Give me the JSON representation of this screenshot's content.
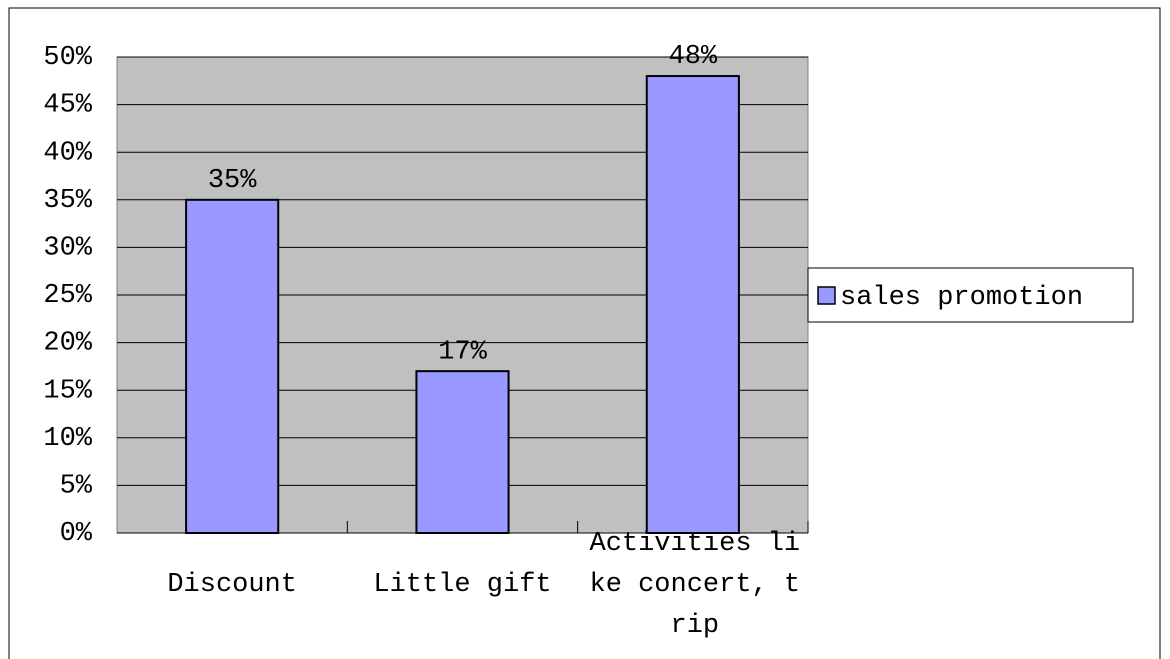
{
  "chart_data": {
    "type": "bar",
    "categories": [
      "Discount",
      "Little gift",
      "Activities like concert, trip"
    ],
    "series": [
      {
        "name": "sales promotion",
        "color": "#9999ff",
        "values": [
          35,
          17,
          48
        ],
        "value_labels": [
          "35%",
          "17%",
          "48%"
        ]
      }
    ],
    "ylim": [
      0,
      50
    ],
    "yticks": [
      {
        "value": 0,
        "label": "0%"
      },
      {
        "value": 5,
        "label": "5%"
      },
      {
        "value": 10,
        "label": "10%"
      },
      {
        "value": 15,
        "label": "15%"
      },
      {
        "value": 20,
        "label": "20%"
      },
      {
        "value": 25,
        "label": "25%"
      },
      {
        "value": 30,
        "label": "30%"
      },
      {
        "value": 35,
        "label": "35%"
      },
      {
        "value": 40,
        "label": "40%"
      },
      {
        "value": 45,
        "label": "45%"
      },
      {
        "value": 50,
        "label": "50%"
      }
    ],
    "grid": true,
    "plot_background": "#c0c0c0",
    "legend": "right"
  }
}
